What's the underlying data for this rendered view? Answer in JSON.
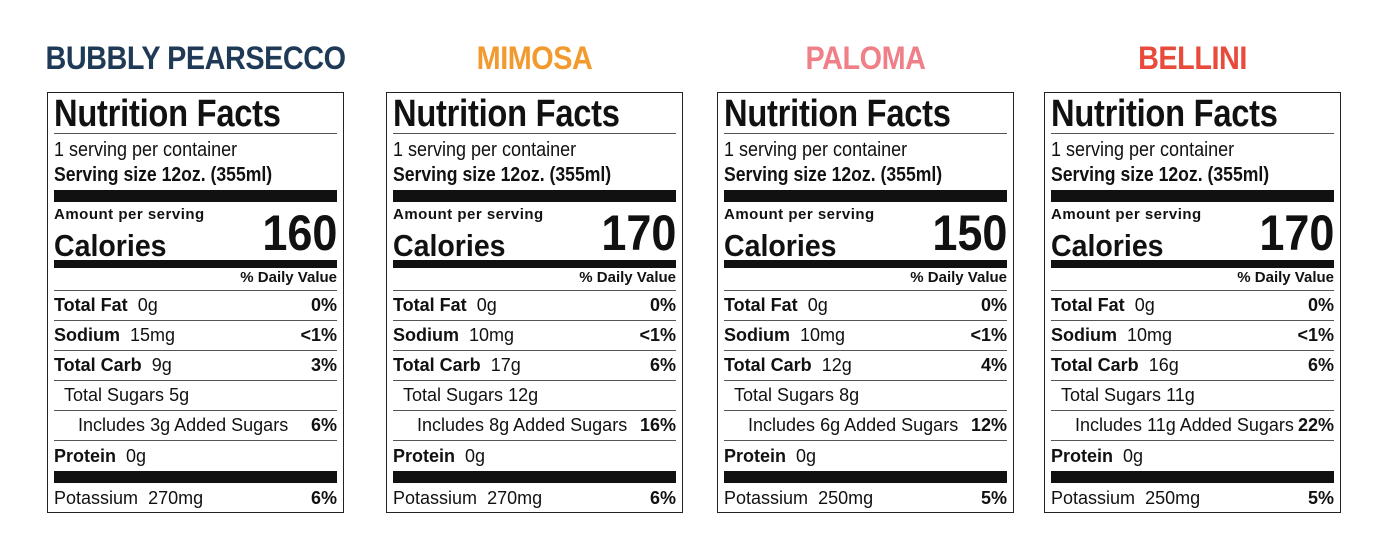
{
  "common": {
    "heading": "Nutrition Facts",
    "servings": "1 serving per container",
    "serving_size": "Serving size 12oz. (355ml)",
    "amount_per_serving": "Amount per serving",
    "calories_label": "Calories",
    "daily_value": "% Daily Value",
    "total_fat": "Total Fat",
    "sodium": "Sodium",
    "total_carb": "Total Carb",
    "total_sugars": "Total Sugars",
    "includes": "Includes",
    "added_sugars": "Added Sugars",
    "protein": "Protein",
    "potassium": "Potassium"
  },
  "labels": [
    {
      "name": "BUBBLY PEARSECCO",
      "color": "#1f3a56",
      "calories": "160",
      "fat": "0g",
      "fat_dv": "0%",
      "sodium": "15mg",
      "sodium_dv": "<1%",
      "carb": "9g",
      "carb_dv": "3%",
      "sugars": "5g",
      "added": "3g",
      "added_dv": "6%",
      "protein": "0g",
      "potassium": "270mg",
      "potassium_dv": "6%"
    },
    {
      "name": "MIMOSA",
      "color": "#f29a2e",
      "calories": "170",
      "fat": "0g",
      "fat_dv": "0%",
      "sodium": "10mg",
      "sodium_dv": "<1%",
      "carb": "17g",
      "carb_dv": "6%",
      "sugars": "12g",
      "added": "8g",
      "added_dv": "16%",
      "protein": "0g",
      "potassium": "270mg",
      "potassium_dv": "6%"
    },
    {
      "name": "PALOMA",
      "color": "#ef8088",
      "calories": "150",
      "fat": "0g",
      "fat_dv": "0%",
      "sodium": "10mg",
      "sodium_dv": "<1%",
      "carb": "12g",
      "carb_dv": "4%",
      "sugars": "8g",
      "added": "6g",
      "added_dv": "12%",
      "protein": "0g",
      "potassium": "250mg",
      "potassium_dv": "5%"
    },
    {
      "name": "BELLINI",
      "color": "#e84a3b",
      "calories": "170",
      "fat": "0g",
      "fat_dv": "0%",
      "sodium": "10mg",
      "sodium_dv": "<1%",
      "carb": "16g",
      "carb_dv": "6%",
      "sugars": "11g",
      "added": "11g",
      "added_dv": "22%",
      "protein": "0g",
      "potassium": "250mg",
      "potassium_dv": "5%"
    }
  ]
}
